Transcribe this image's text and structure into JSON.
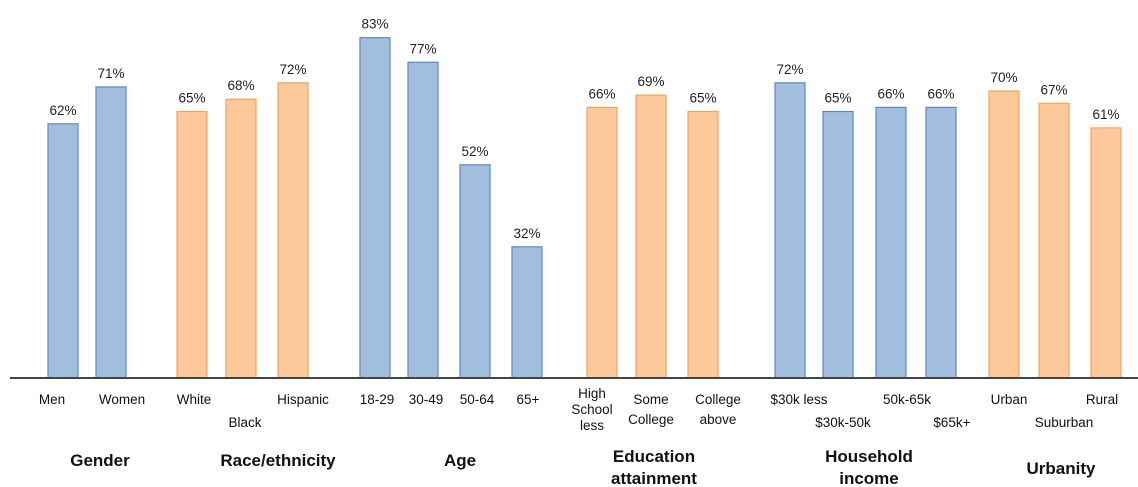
{
  "chart_data": {
    "type": "bar",
    "ylim": [
      0,
      88
    ],
    "colors": {
      "blue": "#a2bfdf",
      "blue_edge": "#5b87c4",
      "orange": "#fdc89a",
      "orange_edge": "#f2a45f",
      "axis": "#444444"
    },
    "groups": [
      {
        "label": [
          "Gender"
        ],
        "color": "blue",
        "bars": [
          {
            "label": "Men",
            "value": 62,
            "text": "62%"
          },
          {
            "label": "Women",
            "value": 71,
            "text": "71%"
          }
        ]
      },
      {
        "label": [
          "Race/ethnicity"
        ],
        "color": "orange",
        "bars": [
          {
            "label": "White",
            "value": 65,
            "text": "65%"
          },
          {
            "label": "Black",
            "value": 68,
            "text": "68%"
          },
          {
            "label": "Hispanic",
            "value": 72,
            "text": "72%"
          }
        ]
      },
      {
        "label": [
          "Age"
        ],
        "color": "blue",
        "bars": [
          {
            "label": "18-29",
            "value": 83,
            "text": "83%"
          },
          {
            "label": "30-49",
            "value": 77,
            "text": "77%"
          },
          {
            "label": "50-64",
            "value": 52,
            "text": "52%"
          },
          {
            "label": "65+",
            "value": 32,
            "text": "32%"
          }
        ]
      },
      {
        "label": [
          "Education",
          "attainment"
        ],
        "color": "orange",
        "bars": [
          {
            "label": "High School less",
            "value": 66,
            "text": "66%"
          },
          {
            "label": "Some College",
            "value": 69,
            "text": "69%"
          },
          {
            "label": "College above",
            "value": 65,
            "text": "65%"
          }
        ]
      },
      {
        "label": [
          "Household",
          "income"
        ],
        "color": "blue",
        "bars": [
          {
            "label": "$30k less",
            "value": 72,
            "text": "72%"
          },
          {
            "label": "$30k-50k",
            "value": 65,
            "text": "65%"
          },
          {
            "label": "50k-65k",
            "value": 66,
            "text": "66%"
          },
          {
            "label": "$65k+",
            "value": 66,
            "text": "66%"
          }
        ]
      },
      {
        "label": [
          "Urbanity"
        ],
        "color": "orange",
        "bars": [
          {
            "label": "Urban",
            "value": 70,
            "text": "70%"
          },
          {
            "label": "Suburban",
            "value": 67,
            "text": "67%"
          },
          {
            "label": "Rural",
            "value": 61,
            "text": "61%"
          }
        ]
      }
    ]
  }
}
